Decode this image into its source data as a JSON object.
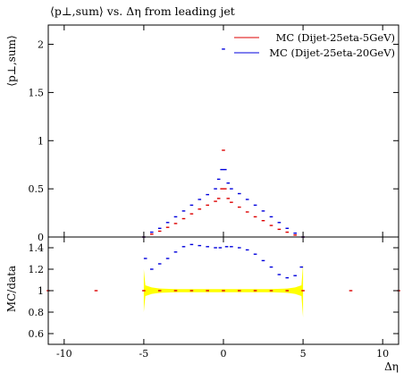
{
  "chart_data": [
    {
      "type": "scatter",
      "title": "⟨p⊥,sum⟩ vs. Δη from leading jet",
      "ylabel": "⟨p⊥,sum⟩",
      "xlabel": "",
      "xlim": [
        -11,
        11
      ],
      "ylim": [
        0,
        2.2
      ],
      "x_ticks": [
        -10,
        -5,
        0,
        5,
        10
      ],
      "y_ticks": [
        0,
        0.5,
        1,
        1.5,
        2
      ],
      "y_tick_labels": [
        "0",
        "0.5",
        "1",
        "1.5",
        "2"
      ],
      "legend_position": "top-right",
      "series": [
        {
          "name": "MC (Dijet-25eta-5GeV)",
          "color": "#dd0000",
          "x": [
            -5.0,
            -4.5,
            -4.0,
            -3.5,
            -3.0,
            -2.5,
            -2.0,
            -1.5,
            -1.0,
            -0.5,
            -0.3,
            -0.1,
            0.0,
            0.1,
            0.3,
            0.5,
            1.0,
            1.5,
            2.0,
            2.5,
            3.0,
            3.5,
            4.0,
            4.5,
            5.0
          ],
          "y": [
            0.0,
            0.03,
            0.06,
            0.1,
            0.14,
            0.19,
            0.24,
            0.29,
            0.33,
            0.37,
            0.4,
            0.5,
            0.9,
            0.5,
            0.4,
            0.36,
            0.31,
            0.26,
            0.21,
            0.17,
            0.12,
            0.08,
            0.05,
            0.02,
            0.0
          ]
        },
        {
          "name": "MC (Dijet-25eta-20GeV)",
          "color": "#0000dd",
          "x": [
            -5.0,
            -4.5,
            -4.0,
            -3.5,
            -3.0,
            -2.5,
            -2.0,
            -1.5,
            -1.0,
            -0.5,
            -0.3,
            -0.1,
            0.0,
            0.1,
            0.3,
            0.5,
            1.0,
            1.5,
            2.0,
            2.5,
            3.0,
            3.5,
            4.0,
            4.5,
            5.0
          ],
          "y": [
            0.0,
            0.05,
            0.09,
            0.15,
            0.21,
            0.27,
            0.33,
            0.39,
            0.44,
            0.5,
            0.6,
            0.7,
            1.95,
            0.7,
            0.56,
            0.5,
            0.45,
            0.39,
            0.33,
            0.27,
            0.21,
            0.15,
            0.09,
            0.04,
            0.0
          ]
        }
      ]
    },
    {
      "type": "scatter",
      "title": "",
      "ylabel": "MC/data",
      "xlabel": "Δη",
      "xlim": [
        -11,
        11
      ],
      "ylim": [
        0.5,
        1.5
      ],
      "x_ticks": [
        -10,
        -5,
        0,
        5,
        10
      ],
      "x_tick_labels": [
        "-10",
        "-5",
        "0",
        "5",
        "10"
      ],
      "y_ticks": [
        0.6,
        0.8,
        1,
        1.2,
        1.4
      ],
      "y_tick_labels": [
        "0.6",
        "0.8",
        "1",
        "1.2",
        "1.4"
      ],
      "band": {
        "color": "#ffff00",
        "x": [
          -5.0,
          -4.9,
          -4.5,
          -4.0,
          -3.0,
          -2.0,
          -1.0,
          0.0,
          1.0,
          2.0,
          3.0,
          4.0,
          4.5,
          4.9,
          5.0
        ],
        "half_width": [
          0.2,
          0.05,
          0.03,
          0.02,
          0.015,
          0.015,
          0.015,
          0.015,
          0.015,
          0.015,
          0.015,
          0.02,
          0.03,
          0.05,
          0.25
        ]
      },
      "series": [
        {
          "name": "MC (Dijet-25eta-5GeV)",
          "color": "#dd0000",
          "x": [
            -11,
            -8,
            -5,
            -4,
            -3,
            -2,
            -1,
            0,
            1,
            2,
            3,
            4,
            5,
            8,
            11
          ],
          "y": [
            1.0,
            1.0,
            1.0,
            1.0,
            1.0,
            1.0,
            1.0,
            1.0,
            1.0,
            1.0,
            1.0,
            1.0,
            1.0,
            1.0,
            1.0
          ]
        },
        {
          "name": "MC (Dijet-25eta-20GeV)",
          "color": "#0000dd",
          "x": [
            -4.9,
            -4.5,
            -4.0,
            -3.5,
            -3.0,
            -2.5,
            -2.0,
            -1.5,
            -1.0,
            -0.5,
            -0.2,
            0.2,
            0.5,
            1.0,
            1.5,
            2.0,
            2.5,
            3.0,
            3.5,
            4.0,
            4.5,
            4.9
          ],
          "y": [
            1.3,
            1.2,
            1.25,
            1.3,
            1.36,
            1.41,
            1.43,
            1.42,
            1.41,
            1.4,
            1.4,
            1.41,
            1.41,
            1.4,
            1.38,
            1.34,
            1.28,
            1.22,
            1.15,
            1.12,
            1.14,
            1.22
          ]
        }
      ]
    }
  ]
}
